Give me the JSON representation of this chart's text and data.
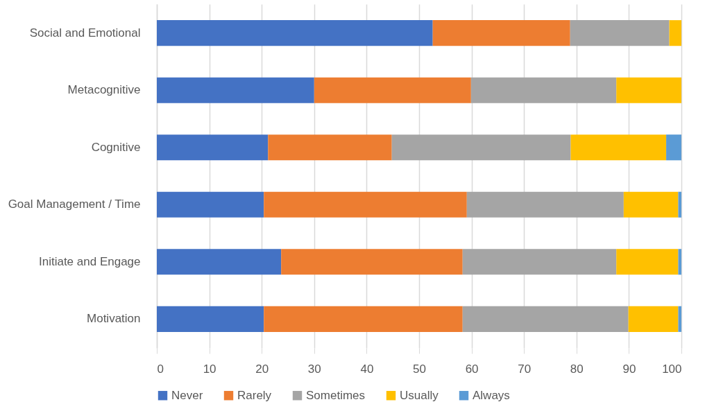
{
  "chart_data": {
    "type": "bar",
    "orientation": "horizontal",
    "stacked": true,
    "categories": [
      "Social and Emotional",
      "Metacognitive",
      "Cognitive",
      "Goal Management / Time",
      "Initiate and Engage",
      "Motivation"
    ],
    "series": [
      {
        "name": "Never",
        "color": "#4472c4",
        "values": [
          52.6,
          30.0,
          21.2,
          20.4,
          23.7,
          20.4
        ]
      },
      {
        "name": "Rarely",
        "color": "#ed7d31",
        "values": [
          26.2,
          29.9,
          23.6,
          38.7,
          34.6,
          37.9
        ]
      },
      {
        "name": "Sometimes",
        "color": "#a5a5a5",
        "values": [
          18.9,
          27.7,
          34.1,
          29.9,
          29.3,
          31.6
        ]
      },
      {
        "name": "Usually",
        "color": "#ffc000",
        "values": [
          2.3,
          12.4,
          18.2,
          10.4,
          11.8,
          9.5
        ]
      },
      {
        "name": "Always",
        "color": "#5b9bd5",
        "values": [
          0,
          0,
          2.9,
          0.6,
          0.6,
          0.6
        ]
      }
    ],
    "xlim": [
      0,
      100
    ],
    "xticks": [
      0,
      10,
      20,
      30,
      40,
      50,
      60,
      70,
      80,
      90,
      100
    ],
    "grid": "x",
    "legend": "bottom"
  }
}
